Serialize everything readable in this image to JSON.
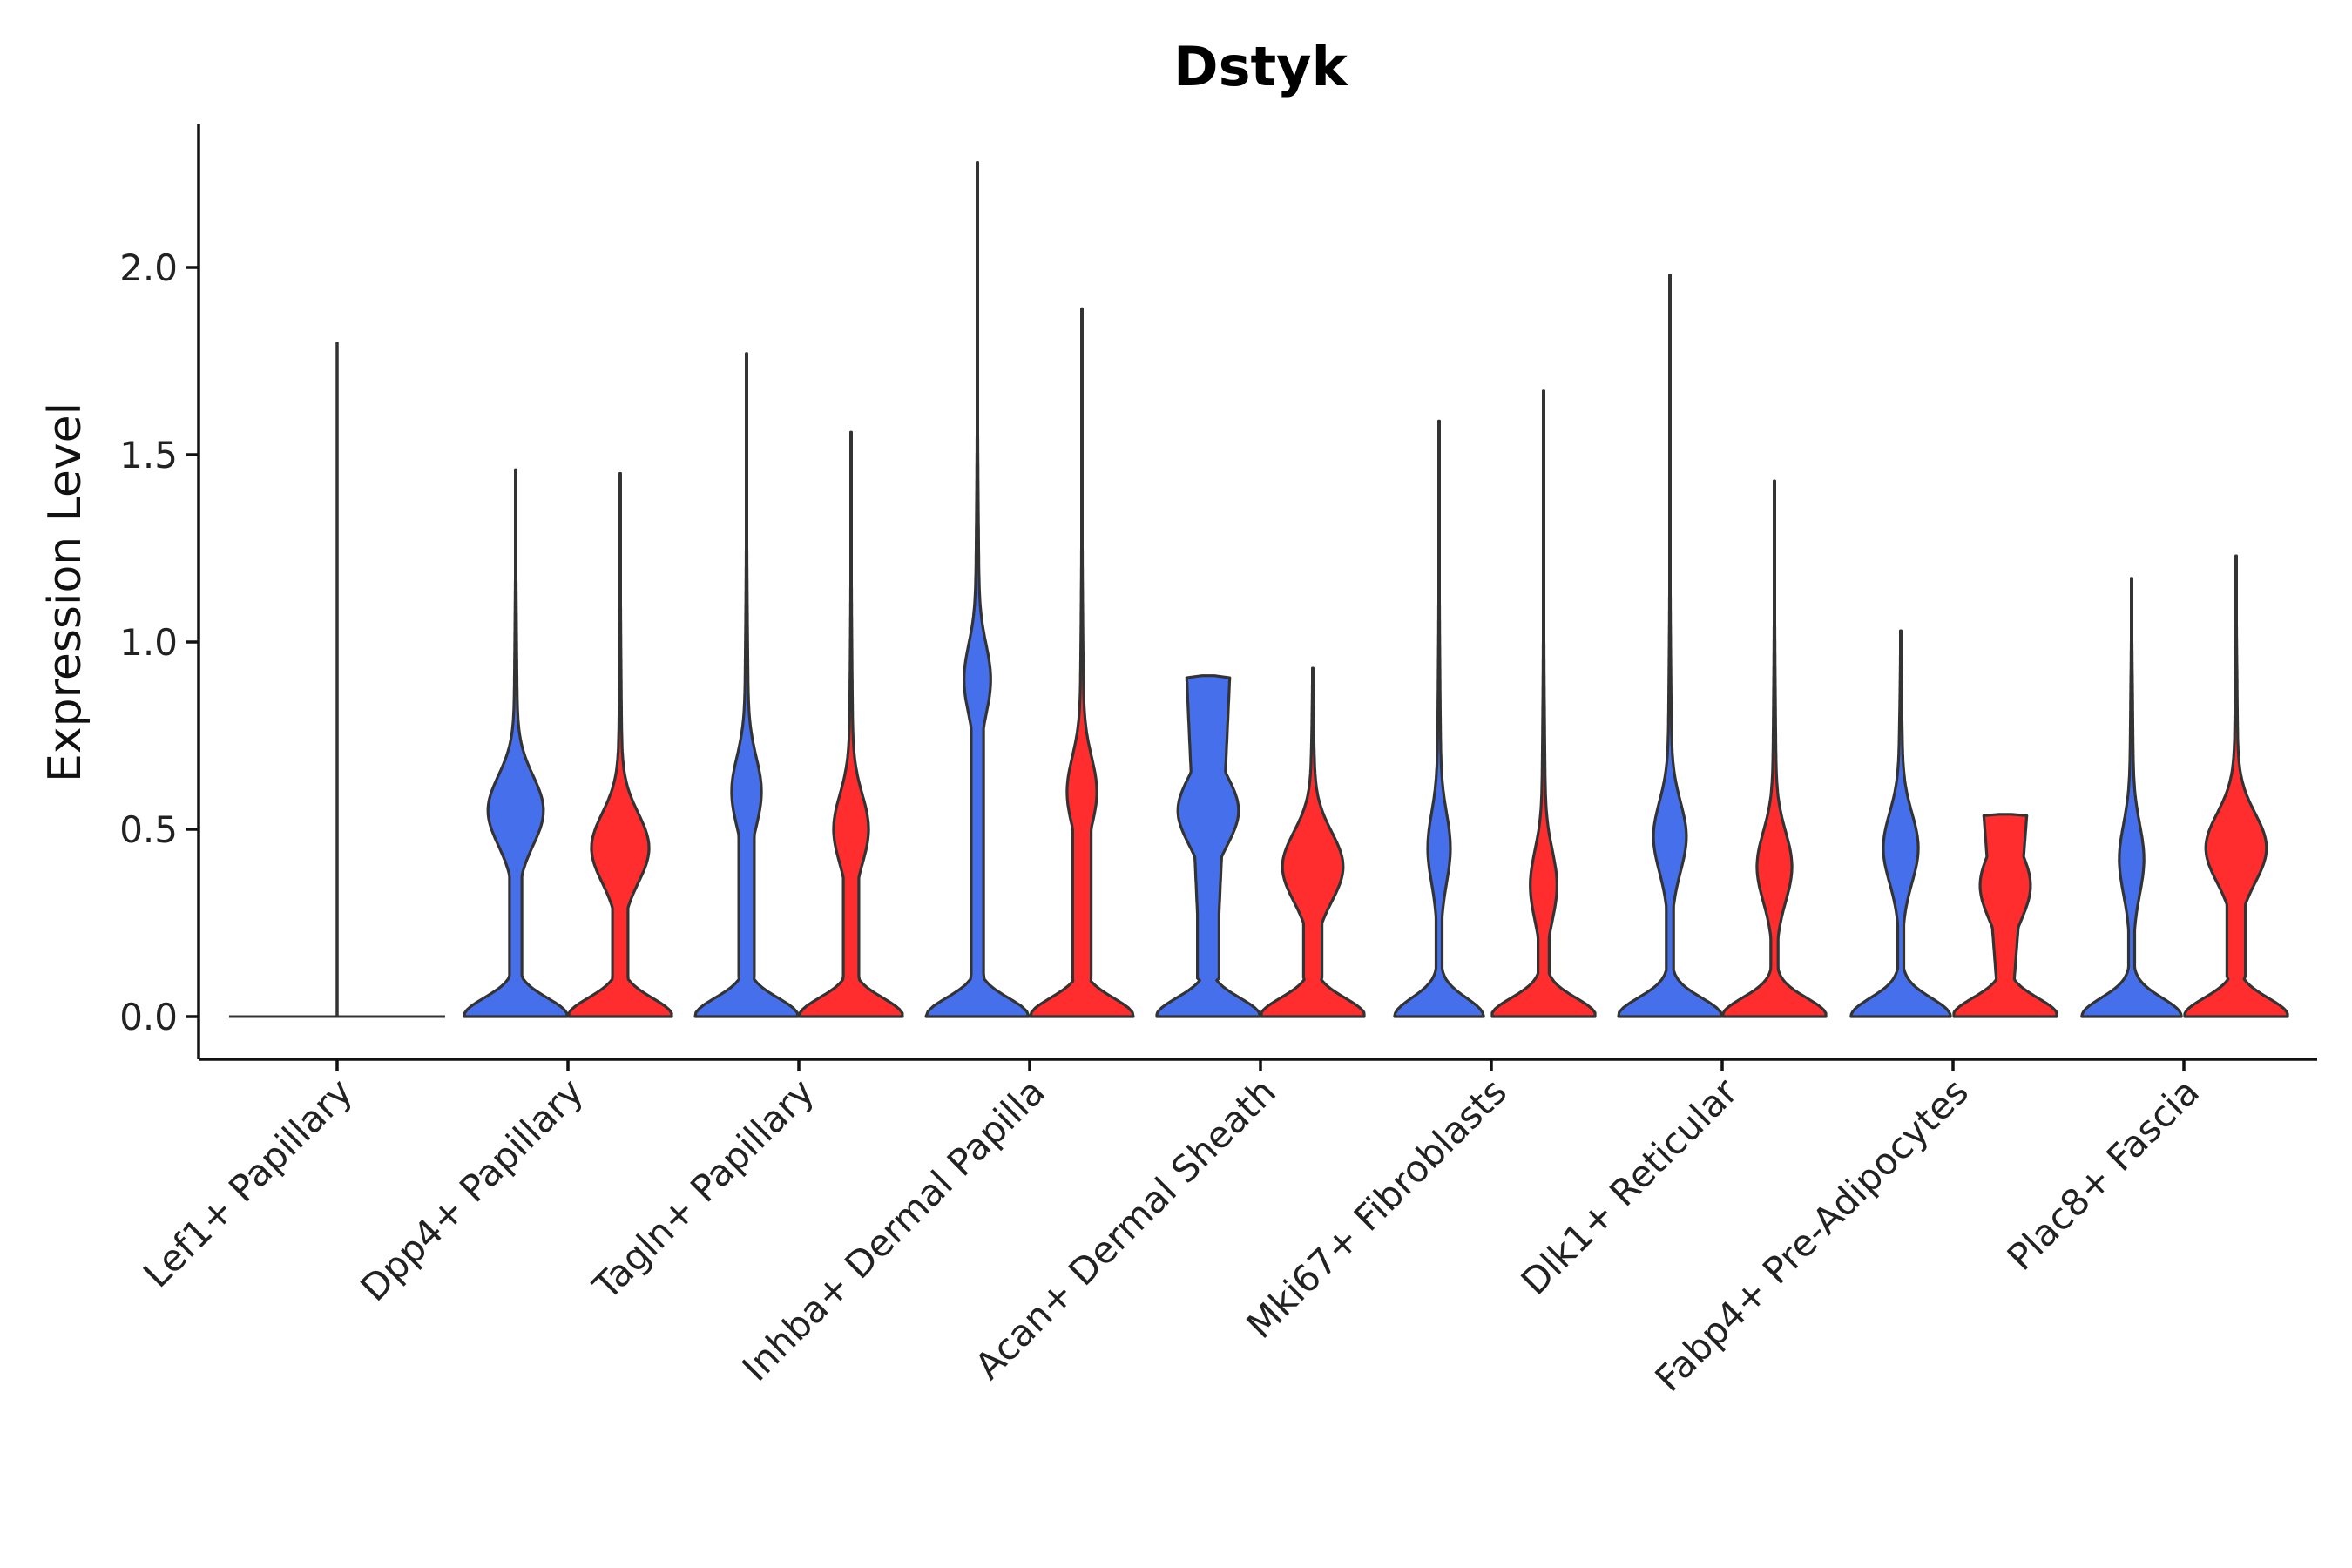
{
  "chart_data": {
    "type": "violin",
    "title": "Dstyk",
    "xlabel": "",
    "ylabel": "Expression Level",
    "ylim": [
      -0.11,
      2.4
    ],
    "yticks": [
      "0.0",
      "0.5",
      "1.0",
      "1.5",
      "2.0"
    ],
    "categories": [
      "Lef1+ Papillary",
      "Dpp4+ Papillary",
      "Tagln+ Papillary",
      "Inhba+ Dermal Papilla",
      "Acan+ Dermal Sheath",
      "Mki67+ Fibroblasts",
      "Dlk1+ Reticular",
      "Fabp4+ Pre-Adipocytes",
      "Plac8+ Fascia"
    ],
    "series": [
      {
        "name": "group-1",
        "color": "#4670EB",
        "violins": [
          {
            "category": "Lef1+ Papillary",
            "max": 1.8,
            "shape": "flat"
          },
          {
            "category": "Dpp4+ Papillary",
            "max": 1.46,
            "shape": "bimodal",
            "mode": 0.55,
            "modeWidth": 0.5,
            "neck": 0.2,
            "baseWidth": 1.0
          },
          {
            "category": "Tagln+ Papillary",
            "max": 1.77,
            "shape": "bimodal",
            "mode": 0.6,
            "modeWidth": 0.25,
            "neck": 0.25,
            "baseWidth": 1.0
          },
          {
            "category": "Inhba+ Dermal Papilla",
            "max": 2.28,
            "shape": "bimodal",
            "mode": 0.9,
            "modeWidth": 0.22,
            "neck": 0.2,
            "baseWidth": 1.0
          },
          {
            "category": "Acan+ Dermal Sheath",
            "max": 0.91,
            "shape": "truncated",
            "mode": 0.55,
            "modeWidth": 0.55,
            "neck": 0.35,
            "baseWidth": 1.0
          },
          {
            "category": "Mki67+ Fibroblasts",
            "max": 1.59,
            "shape": "bimodal",
            "mode": 0.45,
            "modeWidth": 0.18,
            "neck": 0.1,
            "baseWidth": 0.85
          },
          {
            "category": "Dlk1+ Reticular",
            "max": 1.98,
            "shape": "bimodal",
            "mode": 0.48,
            "modeWidth": 0.28,
            "neck": 0.12,
            "baseWidth": 1.0
          },
          {
            "category": "Fabp4+ Pre-Adipocytes",
            "max": 1.03,
            "shape": "bimodal",
            "mode": 0.45,
            "modeWidth": 0.3,
            "neck": 0.1,
            "baseWidth": 0.95
          },
          {
            "category": "Plac8+ Fascia",
            "max": 1.17,
            "shape": "bimodal",
            "mode": 0.42,
            "modeWidth": 0.2,
            "neck": 0.1,
            "baseWidth": 0.95
          }
        ]
      },
      {
        "name": "group-2",
        "color": "#FF2D2D",
        "violins": [
          {
            "category": "Lef1+ Papillary",
            "max": 0.0,
            "shape": "none"
          },
          {
            "category": "Dpp4+ Papillary",
            "max": 1.45,
            "shape": "bimodal",
            "mode": 0.45,
            "modeWidth": 0.52,
            "neck": 0.25,
            "baseWidth": 1.0
          },
          {
            "category": "Tagln+ Papillary",
            "max": 1.56,
            "shape": "bimodal",
            "mode": 0.5,
            "modeWidth": 0.3,
            "neck": 0.25,
            "baseWidth": 1.0
          },
          {
            "category": "Inhba+ Dermal Papilla",
            "max": 1.89,
            "shape": "bimodal",
            "mode": 0.6,
            "modeWidth": 0.25,
            "neck": 0.3,
            "baseWidth": 1.0
          },
          {
            "category": "Acan+ Dermal Sheath",
            "max": 0.93,
            "shape": "bimodal",
            "mode": 0.4,
            "modeWidth": 0.55,
            "neck": 0.3,
            "baseWidth": 1.0
          },
          {
            "category": "Mki67+ Fibroblasts",
            "max": 1.67,
            "shape": "bimodal",
            "mode": 0.35,
            "modeWidth": 0.22,
            "neck": 0.18,
            "baseWidth": 1.0
          },
          {
            "category": "Dlk1+ Reticular",
            "max": 1.43,
            "shape": "bimodal",
            "mode": 0.4,
            "modeWidth": 0.3,
            "neck": 0.12,
            "baseWidth": 1.0
          },
          {
            "category": "Fabp4+ Pre-Adipocytes",
            "max": 0.54,
            "shape": "truncated",
            "mode": 0.35,
            "modeWidth": 0.45,
            "neck": 0.2,
            "baseWidth": 1.0
          },
          {
            "category": "Plac8+ Fascia",
            "max": 1.23,
            "shape": "bimodal",
            "mode": 0.45,
            "modeWidth": 0.55,
            "neck": 0.3,
            "baseWidth": 1.0
          }
        ]
      }
    ]
  }
}
